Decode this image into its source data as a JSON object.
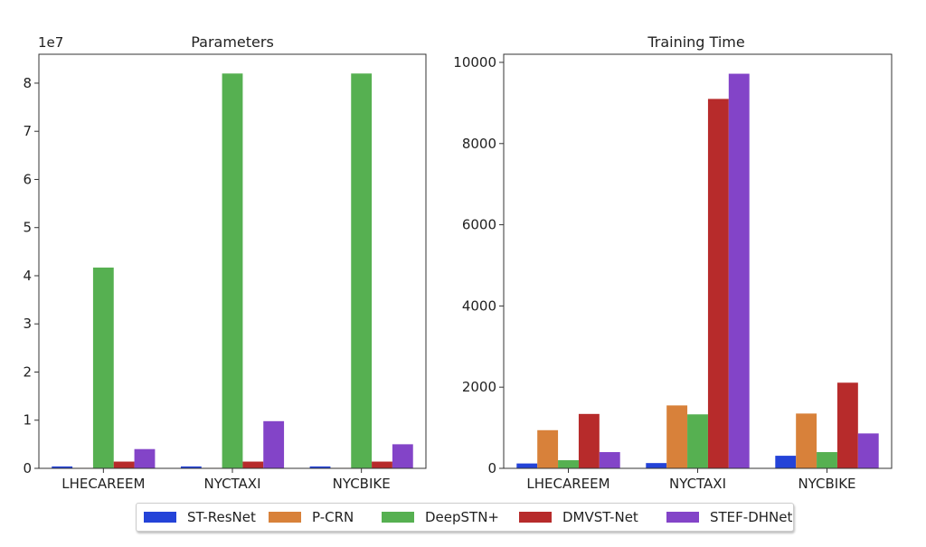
{
  "colors": {
    "ST-ResNet": "#2443d8",
    "P-CRN": "#d8813a",
    "DeepSTN+": "#56b051",
    "DMVST-Net": "#b72b2b",
    "STEF-DHNet": "#8344c8"
  },
  "legend": [
    "ST-ResNet",
    "P-CRN",
    "DeepSTN+",
    "DMVST-Net",
    "STEF-DHNet"
  ],
  "chart_data": [
    {
      "type": "bar",
      "title": "Parameters",
      "xlabel": "",
      "ylabel": "",
      "offset_label": "1e7",
      "categories": [
        "LHECAREEM",
        "NYCTAXI",
        "NYCBIKE"
      ],
      "yticks": [
        "0",
        "1",
        "2",
        "3",
        "4",
        "5",
        "6",
        "7",
        "8"
      ],
      "ylim": [
        0,
        8.6
      ],
      "series": [
        {
          "name": "ST-ResNet",
          "values": [
            0.04,
            0.04,
            0.04
          ]
        },
        {
          "name": "P-CRN",
          "values": [
            0.01,
            0.01,
            0.01
          ]
        },
        {
          "name": "DeepSTN+",
          "values": [
            4.17,
            8.2,
            8.2
          ]
        },
        {
          "name": "DMVST-Net",
          "values": [
            0.14,
            0.14,
            0.14
          ]
        },
        {
          "name": "STEF-DHNet",
          "values": [
            0.4,
            0.98,
            0.5
          ]
        }
      ]
    },
    {
      "type": "bar",
      "title": "Training Time",
      "xlabel": "",
      "ylabel": "",
      "categories": [
        "LHECAREEM",
        "NYCTAXI",
        "NYCBIKE"
      ],
      "yticks": [
        "0",
        "2000",
        "4000",
        "6000",
        "8000",
        "10000"
      ],
      "ylim": [
        0,
        10200
      ],
      "series": [
        {
          "name": "ST-ResNet",
          "values": [
            120,
            130,
            310
          ]
        },
        {
          "name": "P-CRN",
          "values": [
            940,
            1550,
            1350
          ]
        },
        {
          "name": "DeepSTN+",
          "values": [
            200,
            1330,
            400
          ]
        },
        {
          "name": "DMVST-Net",
          "values": [
            1340,
            9100,
            2110
          ]
        },
        {
          "name": "STEF-DHNet",
          "values": [
            400,
            9720,
            860
          ]
        }
      ]
    }
  ]
}
